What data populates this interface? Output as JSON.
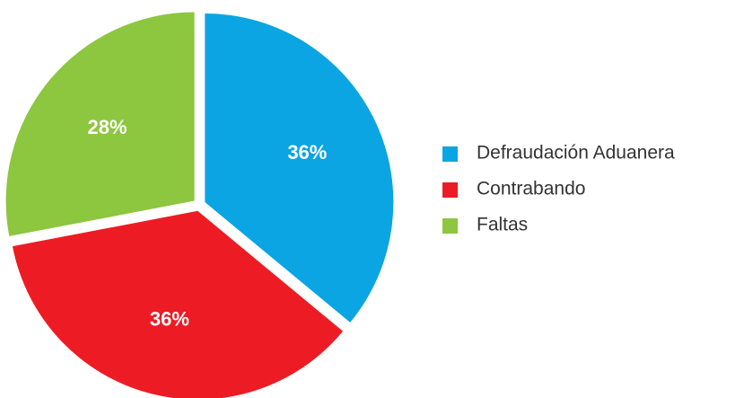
{
  "chart_data": {
    "type": "pie",
    "categories": [
      "Defraudación Aduanera",
      "Contrabando",
      "Faltas"
    ],
    "values": [
      36,
      36,
      28
    ],
    "value_labels": [
      "36%",
      "36%",
      "28%"
    ],
    "colors": [
      "#0aa5e2",
      "#ed1c24",
      "#8dc63f"
    ],
    "legend": "right"
  }
}
